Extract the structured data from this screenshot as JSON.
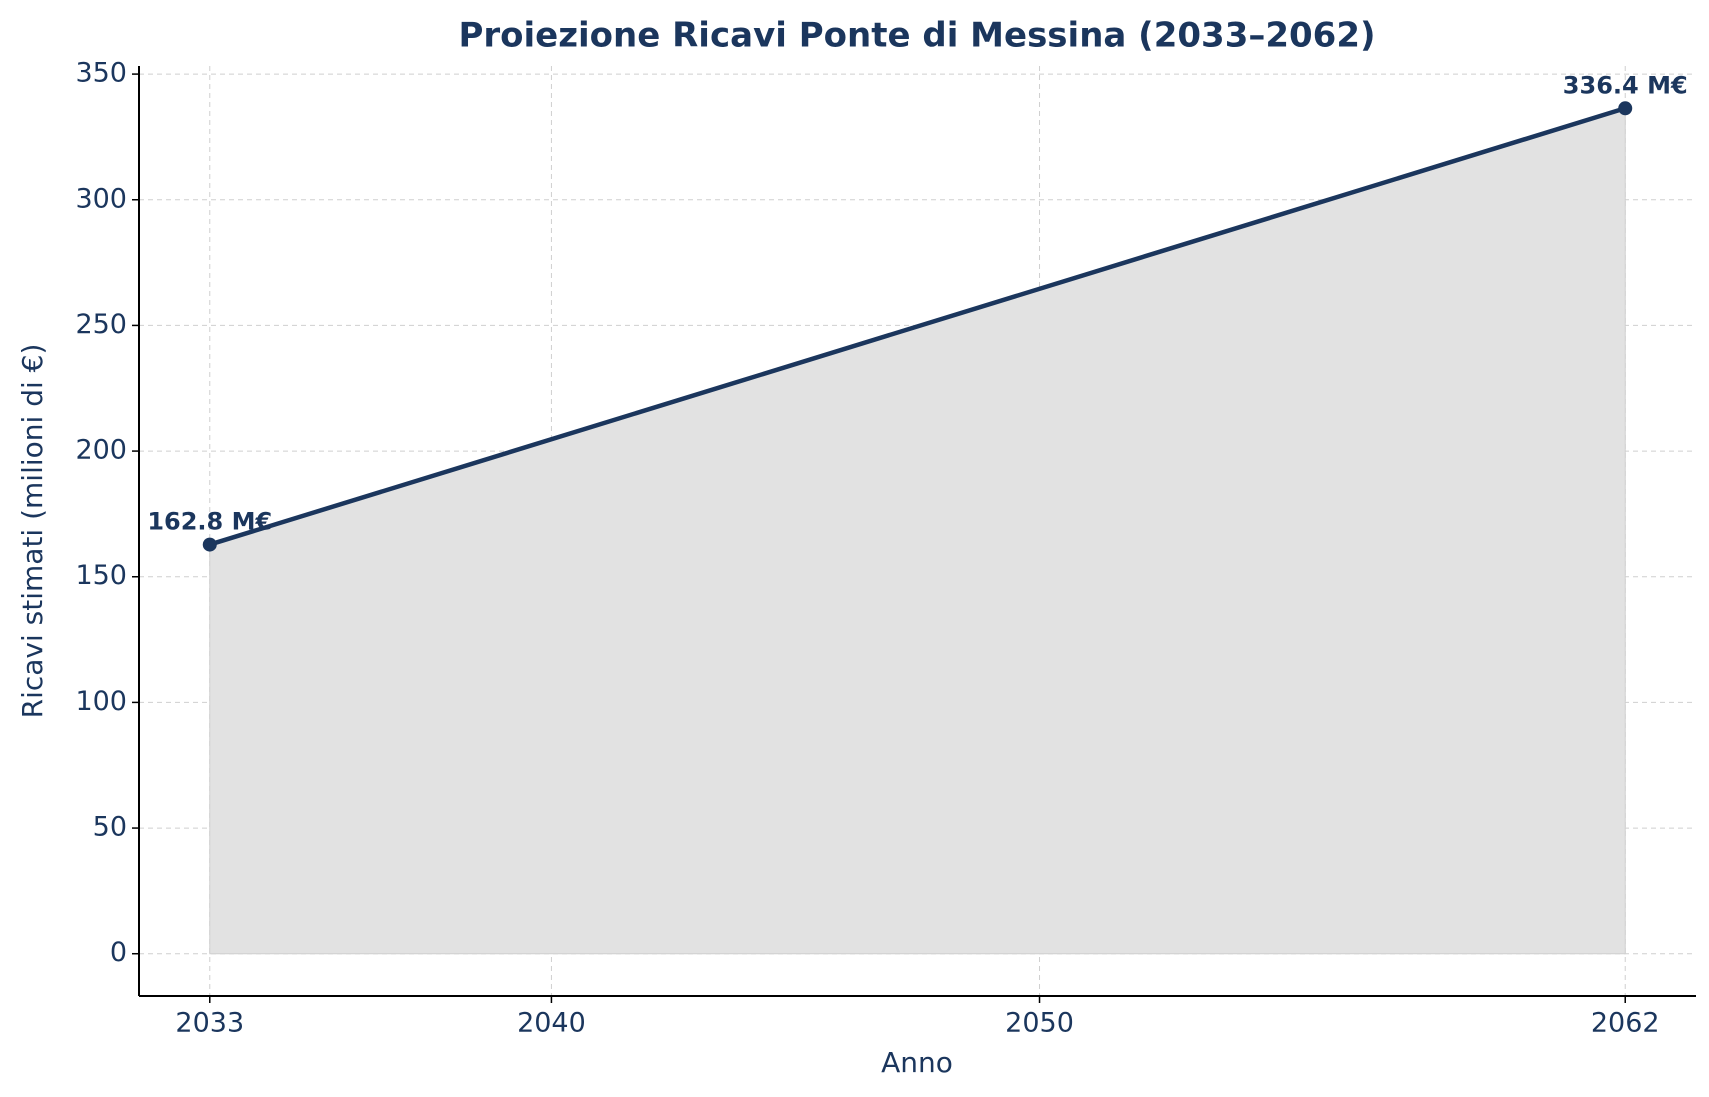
{
  "chart_data": {
    "type": "line",
    "title": "Proiezione Ricavi Ponte di Messina (2033–2062)",
    "x_label": "Anno",
    "y_label": "Ricavi stimati (milioni di €)",
    "x": [
      2033,
      2062
    ],
    "values": [
      162.8,
      336.4
    ],
    "value_labels": [
      "162.8 M€",
      "336.4 M€"
    ],
    "color": "#1b365d",
    "fill_color": "#e2e2e2",
    "xlim": [
      2031.55,
      2063.45
    ],
    "xticks": [
      2033,
      2040,
      2050,
      2062
    ],
    "ylim": [
      -16.82,
      353.22
    ],
    "yticks": [
      0,
      50,
      100,
      150,
      200,
      250,
      300,
      350
    ],
    "grid": true
  }
}
